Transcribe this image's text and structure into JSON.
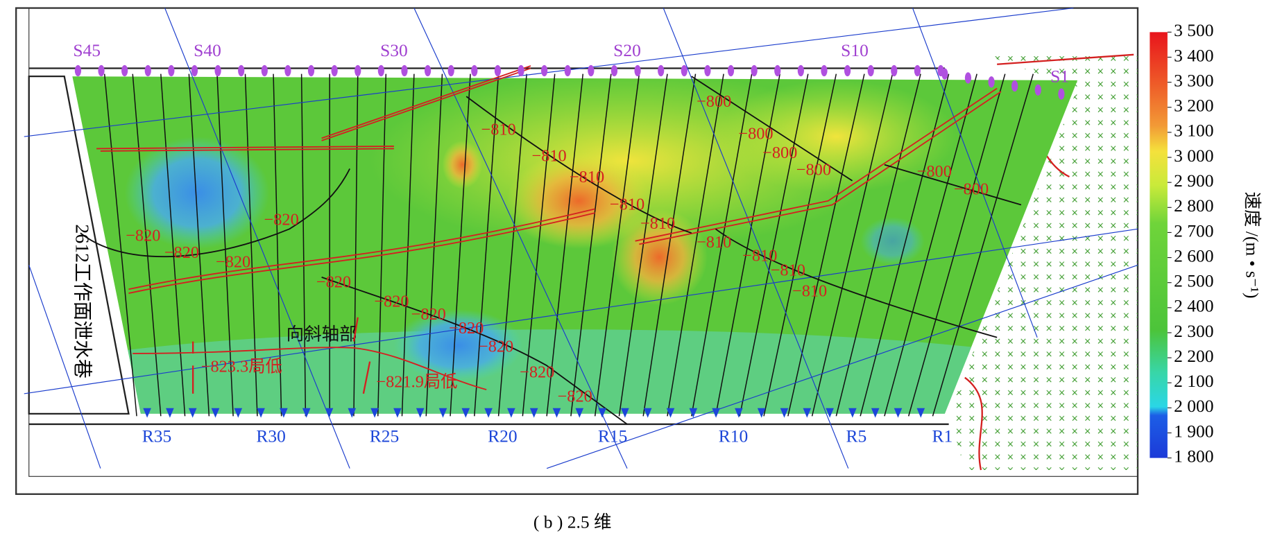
{
  "map": {
    "stations_top": [
      "S45",
      "S40",
      "S30",
      "S20",
      "S10",
      "S1"
    ],
    "stations_bottom": [
      "R35",
      "R30",
      "R25",
      "R20",
      "R15",
      "R10",
      "R5",
      "R1"
    ],
    "contour_labels": [
      "−800",
      "−800",
      "−800",
      "−800",
      "−800",
      "−800",
      "−810",
      "−810",
      "−810",
      "−810",
      "−810",
      "−810",
      "−810",
      "−810",
      "−810",
      "−820",
      "−820",
      "−820",
      "−820",
      "−820",
      "−820",
      "−820",
      "−820",
      "−820",
      "−820",
      "−820"
    ],
    "annotations": {
      "roadway": "2612工作面泄水巷",
      "syncline": "向斜轴部",
      "low1": "−823.3局低",
      "low2": "−821.9局低"
    },
    "colorbar": {
      "label": "速度 /(m • s⁻¹)",
      "lim": [
        1800,
        3500
      ],
      "ticks": [
        {
          "value": 3500,
          "label": "3 500"
        },
        {
          "value": 3400,
          "label": "3 400"
        },
        {
          "value": 3300,
          "label": "3 300"
        },
        {
          "value": 3200,
          "label": "3 200"
        },
        {
          "value": 3100,
          "label": "3 100"
        },
        {
          "value": 3000,
          "label": "3 000"
        },
        {
          "value": 2900,
          "label": "2 900"
        },
        {
          "value": 2800,
          "label": "2 800"
        },
        {
          "value": 2700,
          "label": "2 700"
        },
        {
          "value": 2600,
          "label": "2 600"
        },
        {
          "value": 2500,
          "label": "2 500"
        },
        {
          "value": 2400,
          "label": "2 400"
        },
        {
          "value": 2300,
          "label": "2 300"
        },
        {
          "value": 2200,
          "label": "2 200"
        },
        {
          "value": 2100,
          "label": "2 100"
        },
        {
          "value": 2000,
          "label": "2 000"
        },
        {
          "value": 1900,
          "label": "1 900"
        },
        {
          "value": 1800,
          "label": "1 800"
        }
      ]
    },
    "caption": "( b ) 2.5 维"
  }
}
